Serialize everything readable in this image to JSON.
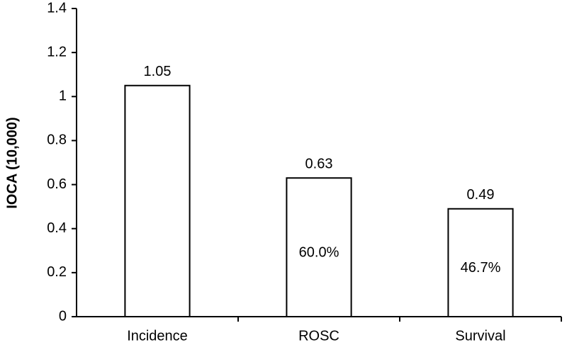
{
  "chart_data": {
    "type": "bar",
    "y_label": "IOCA (10,000)",
    "categories": [
      "Incidence",
      "ROSC",
      "Survival"
    ],
    "values": [
      1.05,
      0.63,
      0.49
    ],
    "inner_labels": [
      null,
      "60.0%",
      "46.7%"
    ],
    "color": "#ffffff",
    "ylim": [
      0,
      1.4
    ],
    "yticks": [
      0,
      0.2,
      0.4,
      0.6,
      0.8,
      1,
      1.2,
      1.4
    ],
    "grid": false
  }
}
